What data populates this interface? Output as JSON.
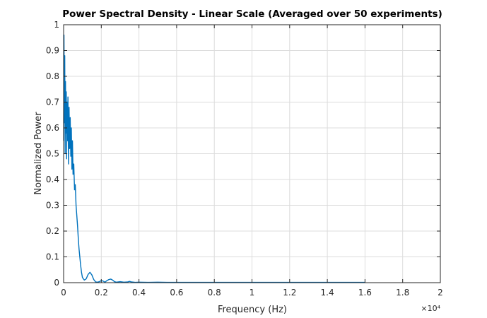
{
  "chart_data": {
    "type": "line",
    "title": "Power Spectral Density - Linear Scale (Averaged over 50 experiments)",
    "xlabel": "Frequency (Hz)",
    "ylabel": "Normalized Power",
    "x_exponent_label": "×10⁴",
    "xlim": [
      0,
      2
    ],
    "ylim": [
      0,
      1
    ],
    "x_ticks": [
      0,
      0.2,
      0.4,
      0.6,
      0.8,
      1,
      1.2,
      1.4,
      1.6,
      1.8,
      2
    ],
    "x_tick_labels": [
      "0",
      "0.2",
      "0.4",
      "0.6",
      "0.8",
      "1",
      "1.2",
      "1.4",
      "1.6",
      "1.8",
      "2"
    ],
    "y_ticks": [
      0,
      0.1,
      0.2,
      0.3,
      0.4,
      0.5,
      0.6,
      0.7,
      0.8,
      0.9,
      1
    ],
    "y_tick_labels": [
      "0",
      "0.1",
      "0.2",
      "0.3",
      "0.4",
      "0.5",
      "0.6",
      "0.7",
      "0.8",
      "0.9",
      "1"
    ],
    "grid": true,
    "line_color": "#0072BD",
    "series": [
      {
        "x": [
          0,
          0.002,
          0.004,
          0.006,
          0.008,
          0.01,
          0.012,
          0.014,
          0.016,
          0.018,
          0.02,
          0.023,
          0.026,
          0.029,
          0.032,
          0.035,
          0.038,
          0.041,
          0.044,
          0.047,
          0.05,
          0.054,
          0.058,
          0.062,
          0.066,
          0.07,
          0.074,
          0.078,
          0.082,
          0.086,
          0.09,
          0.095,
          0.1,
          0.11,
          0.12,
          0.13,
          0.14,
          0.15,
          0.16,
          0.17,
          0.18,
          0.19,
          0.2,
          0.21,
          0.22,
          0.23,
          0.24,
          0.25,
          0.26,
          0.27,
          0.28,
          0.3,
          0.32,
          0.34,
          0.35,
          0.36,
          0.38,
          0.4,
          0.45,
          0.5,
          0.55,
          0.6,
          0.7,
          0.8,
          0.9,
          1.0,
          1.1,
          1.2,
          1.3,
          1.4,
          1.5,
          1.6
        ],
        "y": [
          0.55,
          0.96,
          0.62,
          0.88,
          0.5,
          0.78,
          0.58,
          0.74,
          0.48,
          0.7,
          0.55,
          0.72,
          0.46,
          0.68,
          0.52,
          0.64,
          0.49,
          0.6,
          0.44,
          0.55,
          0.42,
          0.46,
          0.36,
          0.38,
          0.3,
          0.26,
          0.22,
          0.17,
          0.13,
          0.1,
          0.07,
          0.04,
          0.02,
          0.01,
          0.015,
          0.032,
          0.04,
          0.03,
          0.012,
          0.003,
          0.002,
          0.004,
          0.008,
          0.006,
          0.002,
          0.008,
          0.012,
          0.014,
          0.01,
          0.004,
          0.002,
          0.004,
          0.002,
          0.003,
          0.005,
          0.003,
          0.001,
          0.002,
          0.001,
          0.002,
          0.001,
          0.001,
          0.001,
          0.001,
          0.001,
          0.001,
          0.001,
          0.001,
          0.001,
          0.001,
          0.001,
          0.001
        ]
      }
    ]
  }
}
